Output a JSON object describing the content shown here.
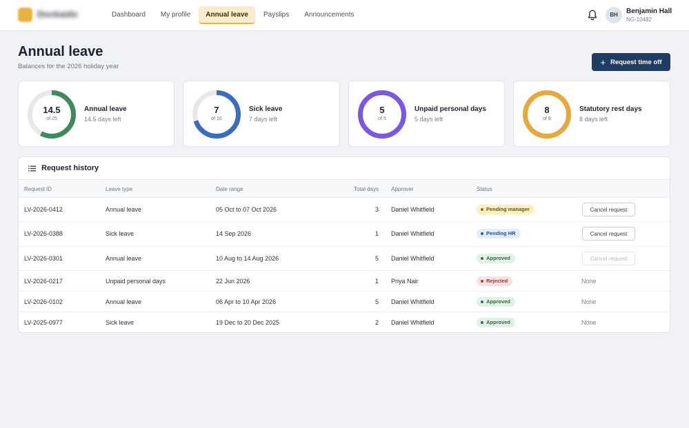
{
  "app": {
    "logo_text": "Dockaido",
    "accent_color": "#e8b347",
    "nav": [
      {
        "label": "Dashboard",
        "active": false
      },
      {
        "label": "My profile",
        "active": false
      },
      {
        "label": "Annual leave",
        "active": true
      },
      {
        "label": "Payslips",
        "active": false
      },
      {
        "label": "Announcements",
        "active": false
      }
    ],
    "notification_icon": "bell-icon",
    "user": {
      "initials": "BH",
      "name": "Benjamin Hall",
      "employee_id": "NG-10482"
    }
  },
  "page": {
    "title": "Annual leave",
    "subtitle": "Balances for the 2026 holiday year",
    "primary_action": {
      "icon": "plus-icon",
      "label": "Request time off"
    }
  },
  "balances": [
    {
      "value": "14.5",
      "total_label": "of 25",
      "remaining_fraction": 0.58,
      "title": "Annual leave",
      "subtitle": "14.5 days left",
      "color": "#3d8a5a"
    },
    {
      "value": "7",
      "total_label": "of 10",
      "remaining_fraction": 0.7,
      "title": "Sick leave",
      "subtitle": "7 days left",
      "color": "#3a6dbd"
    },
    {
      "value": "5",
      "total_label": "of 5",
      "remaining_fraction": 1.0,
      "title": "Unpaid personal days",
      "subtitle": "5 days left",
      "color": "#7b57e4"
    },
    {
      "value": "8",
      "total_label": "of 8",
      "remaining_fraction": 1.0,
      "title": "Statutory rest days",
      "subtitle": "8 days left",
      "color": "#e6a93c"
    }
  ],
  "history": {
    "icon": "list-icon",
    "title": "Request history",
    "columns": [
      "Request ID",
      "Leave type",
      "Date range",
      "Total days",
      "Approver",
      "Status"
    ],
    "rows": [
      {
        "id": "LV-2026-0412",
        "type": "Annual leave",
        "range": "05 Oct to 07 Oct 2026",
        "days": "3",
        "approver": "Daniel Whitfield",
        "status": "Pending manager",
        "status_kind": "pending-manager",
        "action": "Cancel request",
        "action_state": "enabled"
      },
      {
        "id": "LV-2026-0388",
        "type": "Sick leave",
        "range": "14 Sep 2026",
        "days": "1",
        "approver": "Daniel Whitfield",
        "status": "Pending HR",
        "status_kind": "pending-hr",
        "action": "Cancel request",
        "action_state": "enabled"
      },
      {
        "id": "LV-2026-0301",
        "type": "Annual leave",
        "range": "10 Aug to 14 Aug 2026",
        "days": "5",
        "approver": "Daniel Whitfield",
        "status": "Approved",
        "status_kind": "approved",
        "action": "Cancel request",
        "action_state": "disabled"
      },
      {
        "id": "LV-2026-0217",
        "type": "Unpaid personal days",
        "range": "22 Jun 2026",
        "days": "1",
        "approver": "Priya Nair",
        "status": "Rejected",
        "status_kind": "rejected",
        "action": "None",
        "action_state": "none"
      },
      {
        "id": "LV-2026-0102",
        "type": "Annual leave",
        "range": "06 Apr to 10 Apr 2026",
        "days": "5",
        "approver": "Daniel Whitfield",
        "status": "Approved",
        "status_kind": "approved",
        "action": "None",
        "action_state": "none"
      },
      {
        "id": "LV-2025-0977",
        "type": "Sick leave",
        "range": "19 Dec to 20 Dec 2025",
        "days": "2",
        "approver": "Daniel Whitfield",
        "status": "Approved",
        "status_kind": "approved",
        "action": "None",
        "action_state": "none"
      }
    ]
  },
  "status_colors": {
    "pending-manager": {
      "bg": "#fbefc4",
      "fg": "#6b5310",
      "dot": "#8a6c12"
    },
    "pending-hr": {
      "bg": "#e3edfb",
      "fg": "#2b4f86",
      "dot": "#2f5aa0"
    },
    "approved": {
      "bg": "#e2f2e6",
      "fg": "#2c6a41",
      "dot": "#2e7447"
    },
    "rejected": {
      "bg": "#fbe2e2",
      "fg": "#a13434",
      "dot": "#b13a3a"
    }
  }
}
